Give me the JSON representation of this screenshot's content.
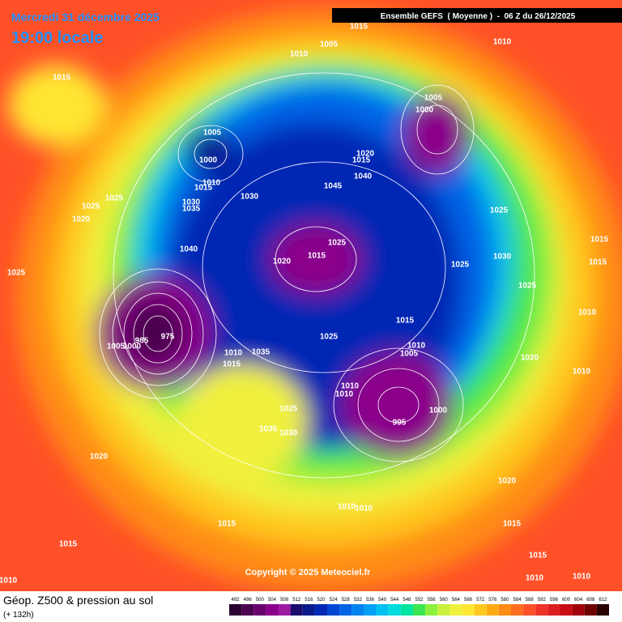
{
  "header": {
    "date": "Mercredi 31 décembre 2025",
    "time": "19:00 locale",
    "run": "Ensemble GEFS  ( Moyenne )  -  06 Z du 26/12/2025"
  },
  "footer": {
    "title": "Géop. Z500 & pression au sol",
    "lead": "(+ 132h)",
    "copyright": "Copyright © 2025 Meteociel.fr"
  },
  "isobars": [
    1015,
    1010,
    1005,
    1010,
    1015,
    1005,
    1000,
    1005,
    1000,
    1020,
    1015,
    1040,
    1010,
    1015,
    1045,
    1025,
    1030,
    1030,
    1035,
    1020,
    1025,
    1025,
    1015,
    1040,
    1025,
    1015,
    1020,
    1025,
    1030,
    1015,
    1025,
    1025,
    1010,
    1015,
    1025,
    975,
    985,
    1000,
    1005,
    1010,
    1035,
    1015,
    1010,
    1005,
    1020,
    1010,
    1010,
    1010,
    1000,
    995,
    1025,
    1035,
    1030,
    1020,
    1020,
    1010,
    1010,
    1015,
    1015,
    1015,
    1015,
    1010,
    1010,
    1010
  ],
  "colorbar": {
    "levels": [
      492,
      496,
      500,
      504,
      508,
      512,
      516,
      520,
      524,
      528,
      532,
      536,
      540,
      544,
      548,
      552,
      556,
      560,
      564,
      568,
      572,
      576,
      580,
      584,
      588,
      592,
      596,
      600,
      604,
      608,
      612
    ],
    "colors": [
      "#2a0030",
      "#4b0050",
      "#6a006e",
      "#8a008a",
      "#9b1aa0",
      "#1a0a6e",
      "#0a1a8c",
      "#0028b4",
      "#0046d2",
      "#0064e6",
      "#0082f0",
      "#00a0f5",
      "#00c0f0",
      "#00dcdc",
      "#00e6a0",
      "#3ce650",
      "#8cf03c",
      "#c8f03c",
      "#f0f03c",
      "#ffe632",
      "#ffc81e",
      "#ffaa14",
      "#ff8c14",
      "#ff6e1e",
      "#ff5028",
      "#f03228",
      "#dc1e1e",
      "#c80a14",
      "#a0000a",
      "#6e0000",
      "#280000"
    ]
  }
}
